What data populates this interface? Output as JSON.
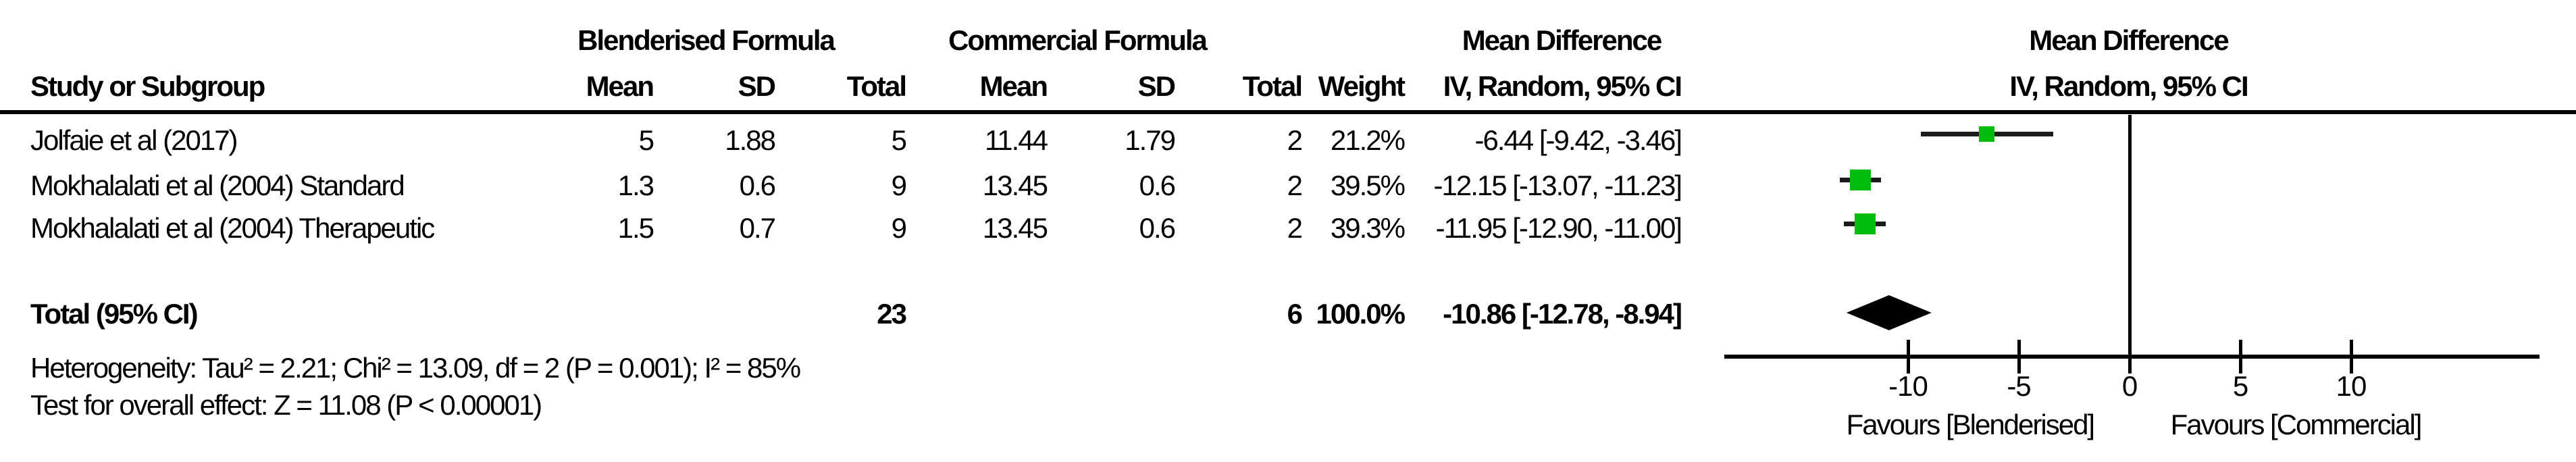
{
  "title_headers": {
    "blenderised": "Blenderised Formula",
    "commercial": "Commercial Formula",
    "mean_difference_text": "Mean Difference",
    "mean_difference_plot": "Mean Difference"
  },
  "sub_headers": {
    "study": "Study or Subgroup",
    "mean": "Mean",
    "sd": "SD",
    "total": "Total",
    "weight": "Weight",
    "iv_text": "IV, Random, 95% CI",
    "iv_plot": "IV, Random, 95% CI"
  },
  "rows": [
    {
      "study": "Jolfaie et al (2017)",
      "bf_mean": "5",
      "bf_sd": "1.88",
      "bf_total": "5",
      "cf_mean": "11.44",
      "cf_sd": "1.79",
      "cf_total": "2",
      "weight": "21.2%",
      "md_ci": "-6.44 [-9.42, -3.46]"
    },
    {
      "study": "Mokhalalati et al (2004) Standard",
      "bf_mean": "1.3",
      "bf_sd": "0.6",
      "bf_total": "9",
      "cf_mean": "13.45",
      "cf_sd": "0.6",
      "cf_total": "2",
      "weight": "39.5%",
      "md_ci": "-12.15 [-13.07, -11.23]"
    },
    {
      "study": "Mokhalalati et al (2004) Therapeutic",
      "bf_mean": "1.5",
      "bf_sd": "0.7",
      "bf_total": "9",
      "cf_mean": "13.45",
      "cf_sd": "0.6",
      "cf_total": "2",
      "weight": "39.3%",
      "md_ci": "-11.95 [-12.90, -11.00]"
    }
  ],
  "total_row": {
    "label": "Total (95% CI)",
    "bf_total": "23",
    "cf_total": "6",
    "weight": "100.0%",
    "md_ci": "-10.86 [-12.78, -8.94]"
  },
  "footnotes": {
    "heterogeneity": "Heterogeneity: Tau² = 2.21; Chi² = 13.09, df = 2 (P = 0.001); I² = 85%",
    "overall_effect": "Test for overall effect: Z = 11.08 (P < 0.00001)"
  },
  "chart_data": {
    "type": "forest",
    "effect_measure": "Mean Difference, IV, Random, 95% CI",
    "x_ticks": [
      -10,
      -5,
      0,
      5,
      10
    ],
    "axis_display_range": [
      -18.3,
      18.5
    ],
    "studies": [
      {
        "name": "Jolfaie et al (2017)",
        "md": -6.44,
        "ci_low": -9.42,
        "ci_high": -3.46,
        "weight_pct": 21.2
      },
      {
        "name": "Mokhalalati et al (2004) Standard",
        "md": -12.15,
        "ci_low": -13.07,
        "ci_high": -11.23,
        "weight_pct": 39.5
      },
      {
        "name": "Mokhalalati et al (2004) Therapeutic",
        "md": -11.95,
        "ci_low": -12.9,
        "ci_high": -11.0,
        "weight_pct": 39.3
      }
    ],
    "total": {
      "md": -10.86,
      "ci_low": -12.78,
      "ci_high": -8.94
    },
    "favours_left": "Favours [Blenderised]",
    "favours_right": "Favours [Commercial]",
    "marker_color": "#00BC0C",
    "diamond_color": "#000000",
    "axis_color": "#000000"
  }
}
